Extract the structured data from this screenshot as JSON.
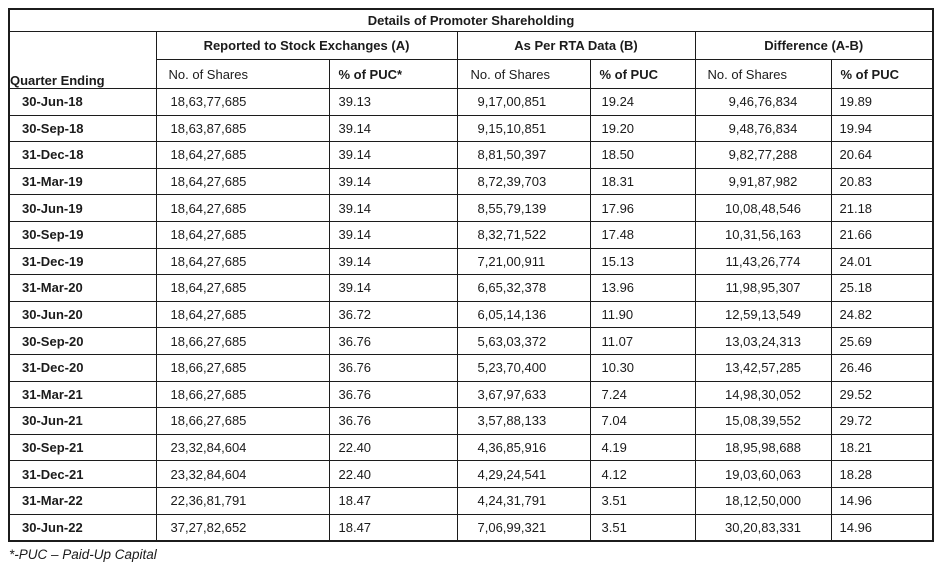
{
  "table": {
    "title": "Details of Promoter Shareholding",
    "row_header": "Quarter Ending",
    "col_groups": [
      {
        "label": "Reported to Stock Exchanges (A)"
      },
      {
        "label": "As Per RTA Data (B)"
      },
      {
        "label": "Difference (A-B)"
      }
    ],
    "sub_headers": [
      "No. of Shares",
      "% of PUC*",
      "No. of Shares",
      "% of PUC",
      "No. of Shares",
      "% of PUC"
    ],
    "rows": [
      {
        "quarter": "30-Jun-18",
        "a_shares": "18,63,77,685",
        "a_puc": "39.13",
        "b_shares": "9,17,00,851",
        "b_puc": "19.24",
        "d_shares": "9,46,76,834",
        "d_puc": "19.89"
      },
      {
        "quarter": "30-Sep-18",
        "a_shares": "18,63,87,685",
        "a_puc": "39.14",
        "b_shares": "9,15,10,851",
        "b_puc": "19.20",
        "d_shares": "9,48,76,834",
        "d_puc": "19.94"
      },
      {
        "quarter": "31-Dec-18",
        "a_shares": "18,64,27,685",
        "a_puc": "39.14",
        "b_shares": "8,81,50,397",
        "b_puc": "18.50",
        "d_shares": "9,82,77,288",
        "d_puc": "20.64"
      },
      {
        "quarter": "31-Mar-19",
        "a_shares": "18,64,27,685",
        "a_puc": "39.14",
        "b_shares": "8,72,39,703",
        "b_puc": "18.31",
        "d_shares": "9,91,87,982",
        "d_puc": "20.83"
      },
      {
        "quarter": "30-Jun-19",
        "a_shares": "18,64,27,685",
        "a_puc": "39.14",
        "b_shares": "8,55,79,139",
        "b_puc": "17.96",
        "d_shares": "10,08,48,546",
        "d_puc": "21.18"
      },
      {
        "quarter": "30-Sep-19",
        "a_shares": "18,64,27,685",
        "a_puc": "39.14",
        "b_shares": "8,32,71,522",
        "b_puc": "17.48",
        "d_shares": "10,31,56,163",
        "d_puc": "21.66"
      },
      {
        "quarter": "31-Dec-19",
        "a_shares": "18,64,27,685",
        "a_puc": "39.14",
        "b_shares": "7,21,00,911",
        "b_puc": "15.13",
        "d_shares": "11,43,26,774",
        "d_puc": "24.01"
      },
      {
        "quarter": "31-Mar-20",
        "a_shares": "18,64,27,685",
        "a_puc": "39.14",
        "b_shares": "6,65,32,378",
        "b_puc": "13.96",
        "d_shares": "11,98,95,307",
        "d_puc": "25.18"
      },
      {
        "quarter": "30-Jun-20",
        "a_shares": "18,64,27,685",
        "a_puc": "36.72",
        "b_shares": "6,05,14,136",
        "b_puc": "11.90",
        "d_shares": "12,59,13,549",
        "d_puc": "24.82"
      },
      {
        "quarter": "30-Sep-20",
        "a_shares": "18,66,27,685",
        "a_puc": "36.76",
        "b_shares": "5,63,03,372",
        "b_puc": "11.07",
        "d_shares": "13,03,24,313",
        "d_puc": "25.69"
      },
      {
        "quarter": "31-Dec-20",
        "a_shares": "18,66,27,685",
        "a_puc": "36.76",
        "b_shares": "5,23,70,400",
        "b_puc": "10.30",
        "d_shares": "13,42,57,285",
        "d_puc": "26.46"
      },
      {
        "quarter": "31-Mar-21",
        "a_shares": "18,66,27,685",
        "a_puc": "36.76",
        "b_shares": "3,67,97,633",
        "b_puc": "7.24",
        "d_shares": "14,98,30,052",
        "d_puc": "29.52"
      },
      {
        "quarter": "30-Jun-21",
        "a_shares": "18,66,27,685",
        "a_puc": "36.76",
        "b_shares": "3,57,88,133",
        "b_puc": "7.04",
        "d_shares": "15,08,39,552",
        "d_puc": "29.72"
      },
      {
        "quarter": "30-Sep-21",
        "a_shares": "23,32,84,604",
        "a_puc": "22.40",
        "b_shares": "4,36,85,916",
        "b_puc": "4.19",
        "d_shares": "18,95,98,688",
        "d_puc": "18.21"
      },
      {
        "quarter": "31-Dec-21",
        "a_shares": "23,32,84,604",
        "a_puc": "22.40",
        "b_shares": "4,29,24,541",
        "b_puc": "4.12",
        "d_shares": "19,03,60,063",
        "d_puc": "18.28"
      },
      {
        "quarter": "31-Mar-22",
        "a_shares": "22,36,81,791",
        "a_puc": "18.47",
        "b_shares": "4,24,31,791",
        "b_puc": "3.51",
        "d_shares": "18,12,50,000",
        "d_puc": "14.96"
      },
      {
        "quarter": "30-Jun-22",
        "a_shares": "37,27,82,652",
        "a_puc": "18.47",
        "b_shares": "7,06,99,321",
        "b_puc": "3.51",
        "d_shares": "30,20,83,331",
        "d_puc": "14.96"
      }
    ]
  },
  "footnote": "*-PUC – Paid-Up Capital"
}
